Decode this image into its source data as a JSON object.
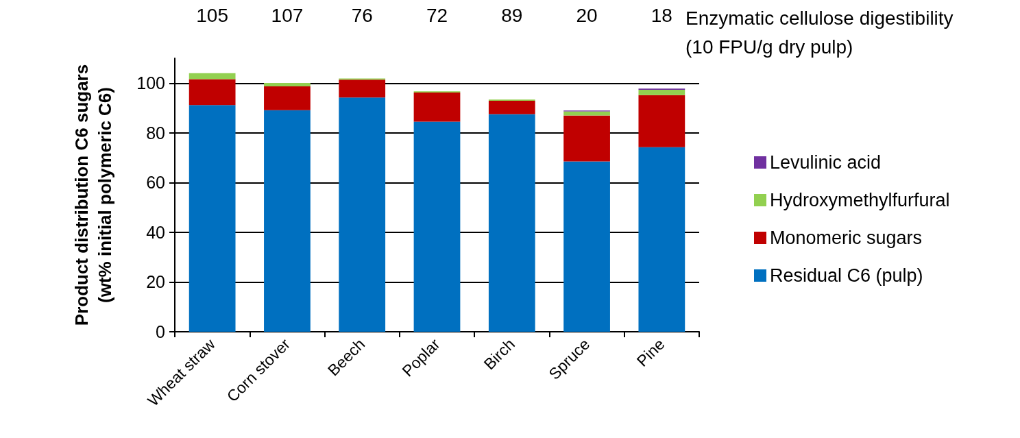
{
  "chart_data": {
    "type": "bar",
    "stacked": true,
    "ylabel": "Product distribution C6 sugars\n(wt% initial polymeric C6)",
    "categories": [
      "Wheat straw",
      "Corn stover",
      "Beech",
      "Poplar",
      "Birch",
      "Spruce",
      "Pine"
    ],
    "series": [
      {
        "name": "Residual C6 (pulp)",
        "color": "#0070c0",
        "values": [
          91.2,
          89.1,
          94.2,
          84.5,
          87.5,
          68.5,
          74.2
        ]
      },
      {
        "name": "Monomeric sugars",
        "color": "#c00000",
        "values": [
          10.4,
          9.6,
          7.2,
          11.7,
          5.4,
          18.5,
          21.0
        ]
      },
      {
        "name": "Hydroxymethylfurfural",
        "color": "#92d050",
        "values": [
          2.4,
          1.4,
          0.5,
          0.5,
          0.5,
          1.6,
          2.1
        ]
      },
      {
        "name": "Levulinic acid",
        "color": "#7030a0",
        "values": [
          0,
          0,
          0,
          0,
          0,
          0.4,
          0.5
        ]
      }
    ],
    "ylim": [
      0,
      110
    ],
    "yticks": [
      0,
      20,
      40,
      60,
      80,
      100
    ],
    "grid": "y",
    "legend": "right",
    "annotations": [
      "105",
      "107",
      "76",
      "72",
      "89",
      "20",
      "18",
      "Enzymatic cellulose digestibility\n(10 FPU/g dry pulp)"
    ]
  }
}
